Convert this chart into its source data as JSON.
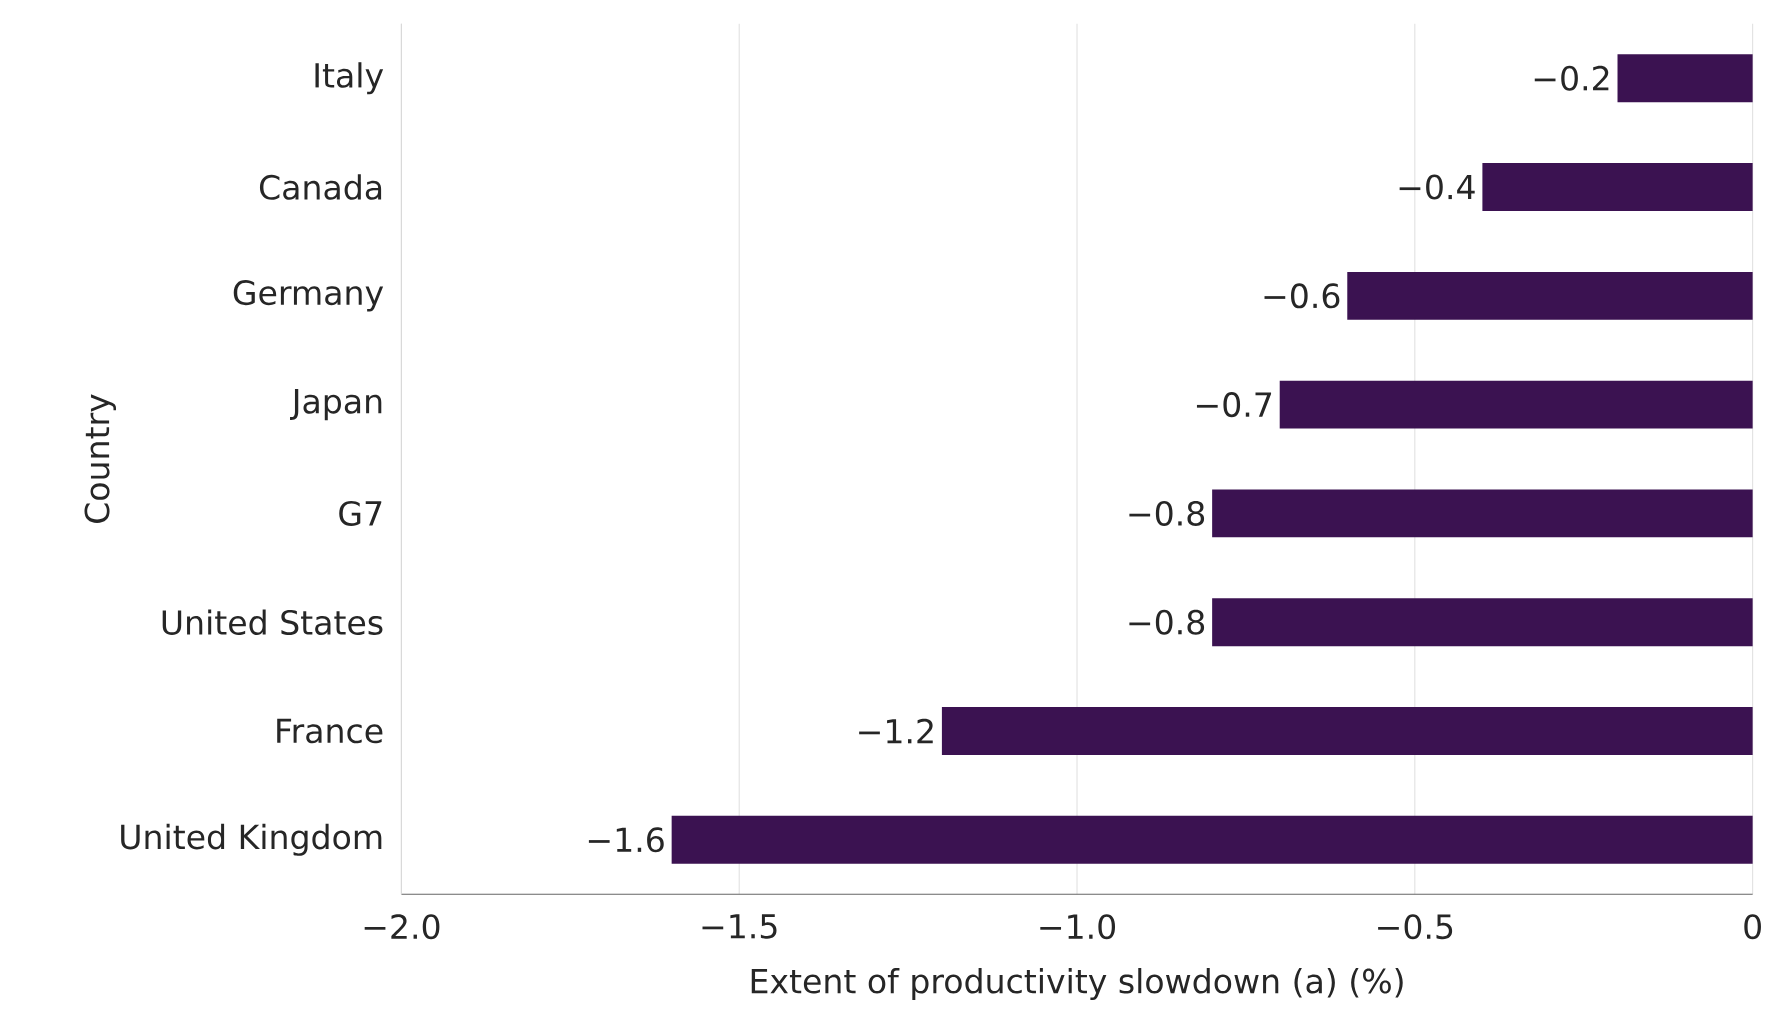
{
  "chart_data": {
    "type": "bar",
    "orientation": "horizontal",
    "categories": [
      "Italy",
      "Canada",
      "Germany",
      "Japan",
      "G7",
      "United States",
      "France",
      "United Kingdom"
    ],
    "values": [
      -0.2,
      -0.4,
      -0.6,
      -0.7,
      -0.8,
      -0.8,
      -1.2,
      -1.6
    ],
    "value_labels": [
      "−0.2",
      "−0.4",
      "−0.6",
      "−0.7",
      "−0.8",
      "−0.8",
      "−1.2",
      "−1.6"
    ],
    "color": "#3b1251",
    "xlim": [
      -2,
      0
    ],
    "xticks": [
      {
        "value": -2,
        "label": "−2.0"
      },
      {
        "value": -1.5,
        "label": "−1.5"
      },
      {
        "value": -1,
        "label": "−1.0"
      },
      {
        "value": -0.5,
        "label": "−0.5"
      },
      0
    ],
    "xlabel": "Extent of productivity slowdown (a) (%)",
    "ylabel": "Country",
    "grid": "x"
  }
}
